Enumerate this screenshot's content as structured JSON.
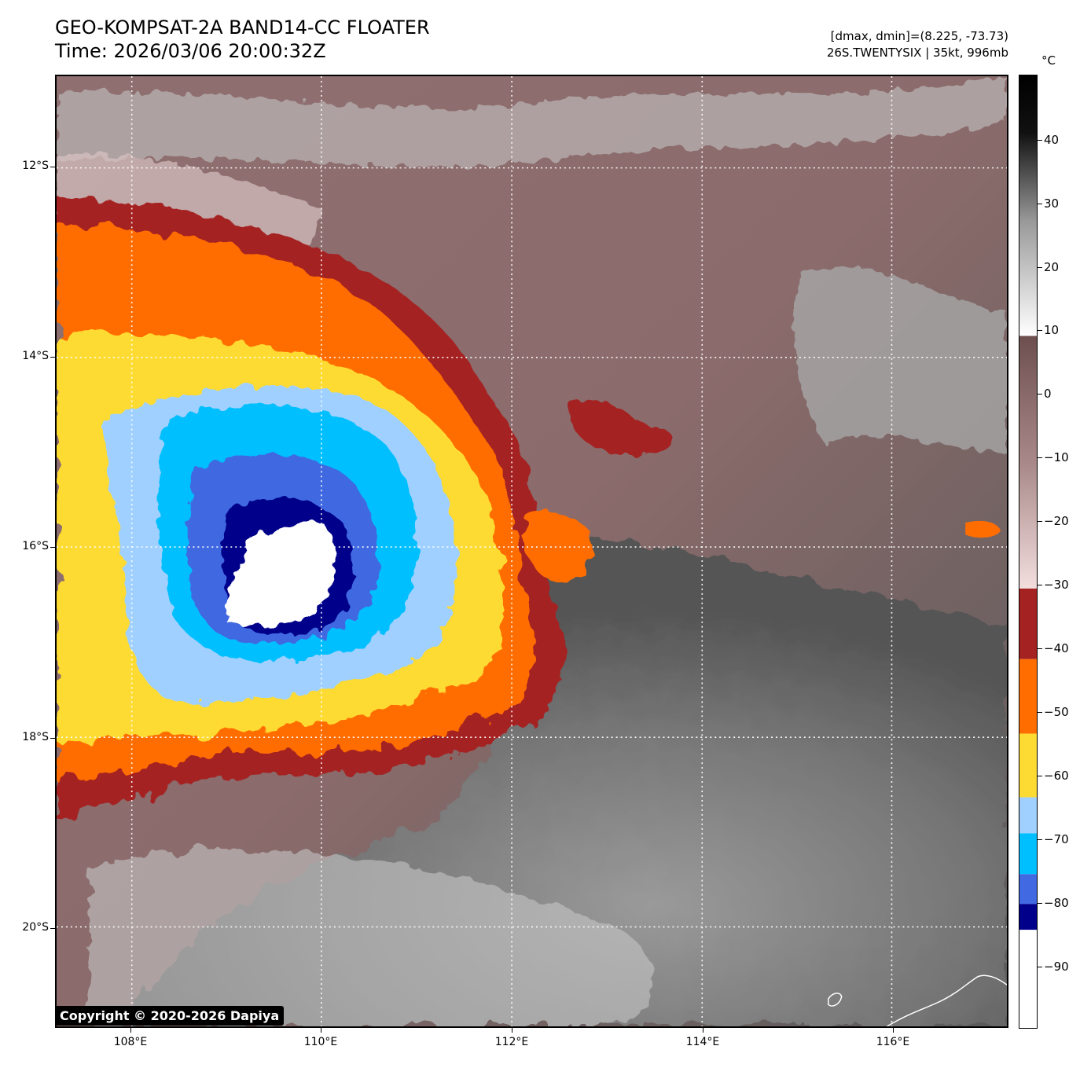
{
  "title": {
    "line1": "GEO-KOMPSAT-2A BAND14-CC FLOATER",
    "line2": "Time: 2026/03/06 20:00:32Z"
  },
  "meta": {
    "range": "[dmax, dmin]=(8.225, -73.73)",
    "storm": "26S.TWENTYSIX | 35kt, 996mb"
  },
  "map": {
    "lat_labels": [
      "12°S",
      "14°S",
      "16°S",
      "18°S",
      "20°S"
    ],
    "lon_labels": [
      "108°E",
      "110°E",
      "112°E",
      "114°E",
      "116°E"
    ],
    "copyright": "Copyright © 2020-2026 Dapiya"
  },
  "colorbar": {
    "unit": "°C",
    "labels": [
      "40",
      "30",
      "20",
      "10",
      "0",
      "−10",
      "−20",
      "−30",
      "−40",
      "−50",
      "−60",
      "−70",
      "−80",
      "−90"
    ],
    "color_steps": [
      {
        "from": -100,
        "to": -84,
        "color": "#ffffff"
      },
      {
        "from": -84,
        "to": -80,
        "color": "#00008b"
      },
      {
        "from": -80,
        "to": -70,
        "color": "#4169e1"
      },
      {
        "from": -70,
        "to": -65,
        "color": "#00bfff"
      },
      {
        "from": -65,
        "to": -60,
        "color": "#9fd0ff"
      },
      {
        "from": -60,
        "to": -50,
        "color": "#fedb33"
      },
      {
        "from": -50,
        "to": -40,
        "color": "#ff6d00"
      },
      {
        "from": -40,
        "to": -30,
        "color": "#a52222"
      }
    ]
  }
}
